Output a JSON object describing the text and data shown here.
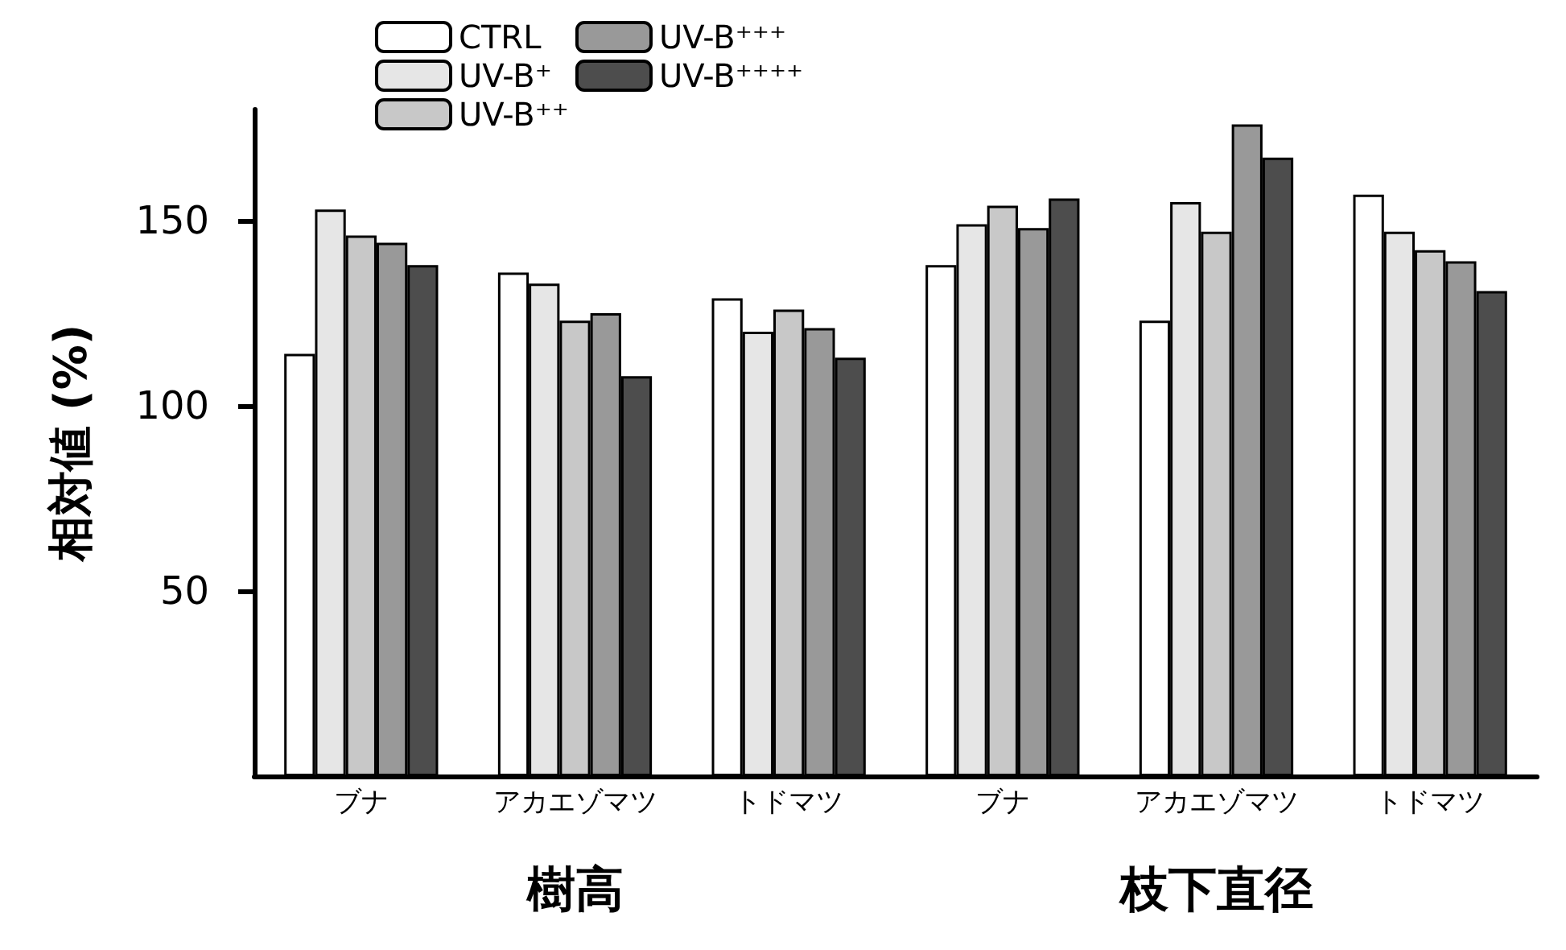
{
  "chart_data": {
    "type": "bar",
    "ylabel": "相対値 (%)",
    "categories": [
      "ブナ",
      "アカエゾマツ",
      "トドマツ",
      "ブナ",
      "アカエゾマツ",
      "トドマツ"
    ],
    "series": [
      {
        "name": "CTRL",
        "color": "#ffffff",
        "values": [
          114,
          136,
          129,
          138,
          123,
          157
        ]
      },
      {
        "name": "UV-B⁺",
        "color": "#e6e6e6",
        "values": [
          153,
          133,
          120,
          149,
          155,
          147
        ]
      },
      {
        "name": "UV-B⁺⁺",
        "color": "#c8c8c8",
        "values": [
          146,
          123,
          126,
          154,
          147,
          142
        ]
      },
      {
        "name": "UV-B⁺⁺⁺",
        "color": "#999999",
        "values": [
          144,
          125,
          121,
          148,
          176,
          139
        ]
      },
      {
        "name": "UV-B⁺⁺⁺⁺",
        "color": "#4d4d4d",
        "values": [
          138,
          108,
          113,
          156,
          167,
          131
        ]
      }
    ],
    "ylim": [
      0,
      180
    ],
    "yticks": [
      50,
      100,
      150
    ],
    "grid": false,
    "legend": "top",
    "annotations": [
      "樹高",
      "枝下直径"
    ]
  }
}
